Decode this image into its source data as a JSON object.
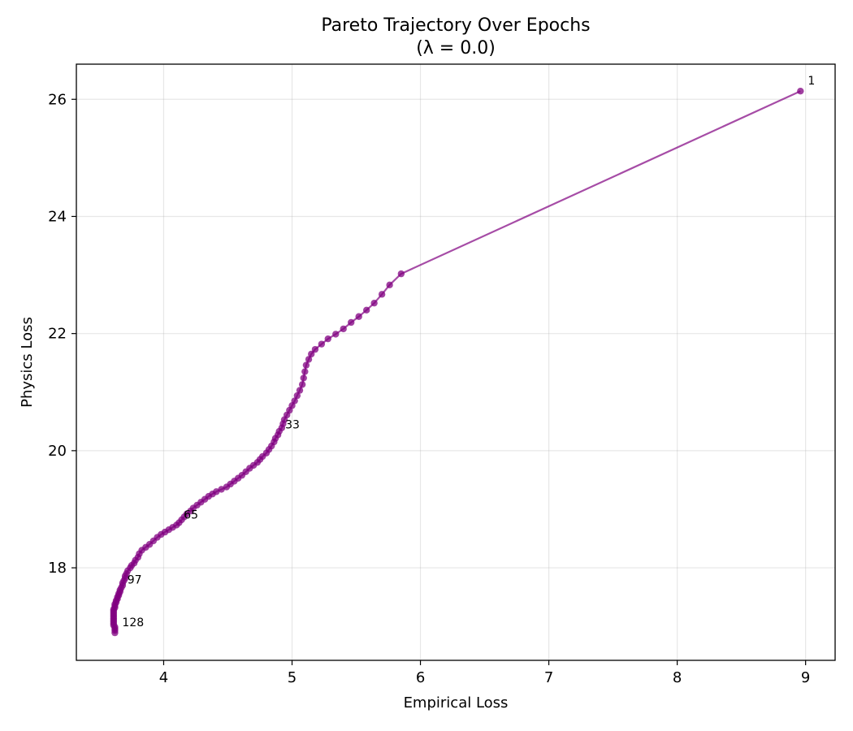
{
  "chart_data": {
    "type": "line",
    "title": "Pareto Trajectory Over Epochs",
    "subtitle": "(λ = 0.0)",
    "xlabel": "Empirical Loss",
    "ylabel": "Physics Loss",
    "xlim": [
      3.32,
      9.23
    ],
    "ylim": [
      16.42,
      26.6
    ],
    "xticks": [
      4,
      5,
      6,
      7,
      8,
      9
    ],
    "yticks": [
      18,
      20,
      22,
      24,
      26
    ],
    "grid": true,
    "color": "#800080",
    "points": [
      [
        8.96,
        26.14
      ],
      [
        5.85,
        23.02
      ],
      [
        5.76,
        22.83
      ],
      [
        5.7,
        22.67
      ],
      [
        5.64,
        22.52
      ],
      [
        5.58,
        22.4
      ],
      [
        5.52,
        22.29
      ],
      [
        5.46,
        22.19
      ],
      [
        5.4,
        22.08
      ],
      [
        5.34,
        21.99
      ],
      [
        5.28,
        21.91
      ],
      [
        5.23,
        21.82
      ],
      [
        5.18,
        21.73
      ],
      [
        5.15,
        21.65
      ],
      [
        5.13,
        21.56
      ],
      [
        5.11,
        21.46
      ],
      [
        5.1,
        21.35
      ],
      [
        5.09,
        21.24
      ],
      [
        5.08,
        21.13
      ],
      [
        5.06,
        21.03
      ],
      [
        5.04,
        20.94
      ],
      [
        5.02,
        20.85
      ],
      [
        5.0,
        20.77
      ],
      [
        4.98,
        20.69
      ],
      [
        4.96,
        20.61
      ],
      [
        4.94,
        20.53
      ],
      [
        4.93,
        20.46
      ],
      [
        4.92,
        20.39
      ],
      [
        4.9,
        20.33
      ],
      [
        4.89,
        20.27
      ],
      [
        4.87,
        20.21
      ],
      [
        4.86,
        20.15
      ],
      [
        4.84,
        20.08
      ],
      [
        4.82,
        20.02
      ],
      [
        4.8,
        19.96
      ],
      [
        4.77,
        19.9
      ],
      [
        4.75,
        19.85
      ],
      [
        4.73,
        19.8
      ],
      [
        4.7,
        19.75
      ],
      [
        4.67,
        19.7
      ],
      [
        4.64,
        19.64
      ],
      [
        4.61,
        19.58
      ],
      [
        4.58,
        19.53
      ],
      [
        4.55,
        19.48
      ],
      [
        4.52,
        19.43
      ],
      [
        4.49,
        19.38
      ],
      [
        4.45,
        19.34
      ],
      [
        4.41,
        19.3
      ],
      [
        4.38,
        19.26
      ],
      [
        4.35,
        19.22
      ],
      [
        4.32,
        19.17
      ],
      [
        4.29,
        19.12
      ],
      [
        4.26,
        19.07
      ],
      [
        4.23,
        19.02
      ],
      [
        4.21,
        18.97
      ],
      [
        4.18,
        18.92
      ],
      [
        4.16,
        18.87
      ],
      [
        4.14,
        18.82
      ],
      [
        4.12,
        18.77
      ],
      [
        4.1,
        18.73
      ],
      [
        4.07,
        18.69
      ],
      [
        4.04,
        18.65
      ],
      [
        4.01,
        18.61
      ],
      [
        3.98,
        18.57
      ],
      [
        3.95,
        18.52
      ],
      [
        3.92,
        18.46
      ],
      [
        3.89,
        18.4
      ],
      [
        3.86,
        18.35
      ],
      [
        3.83,
        18.3
      ],
      [
        3.81,
        18.24
      ],
      [
        3.8,
        18.18
      ],
      [
        3.78,
        18.13
      ],
      [
        3.77,
        18.08
      ],
      [
        3.75,
        18.04
      ],
      [
        3.74,
        18.0
      ],
      [
        3.72,
        17.95
      ],
      [
        3.71,
        17.9
      ],
      [
        3.7,
        17.86
      ],
      [
        3.7,
        17.82
      ],
      [
        3.69,
        17.78
      ],
      [
        3.68,
        17.74
      ],
      [
        3.68,
        17.7
      ],
      [
        3.67,
        17.66
      ],
      [
        3.66,
        17.62
      ],
      [
        3.66,
        17.59
      ],
      [
        3.65,
        17.56
      ],
      [
        3.65,
        17.53
      ],
      [
        3.64,
        17.5
      ],
      [
        3.64,
        17.47
      ],
      [
        3.63,
        17.44
      ],
      [
        3.63,
        17.41
      ],
      [
        3.62,
        17.38
      ],
      [
        3.62,
        17.35
      ],
      [
        3.62,
        17.32
      ],
      [
        3.61,
        17.29
      ],
      [
        3.61,
        17.26
      ],
      [
        3.61,
        17.23
      ],
      [
        3.61,
        17.2
      ],
      [
        3.61,
        17.17
      ],
      [
        3.61,
        17.14
      ],
      [
        3.61,
        17.11
      ],
      [
        3.61,
        17.08
      ],
      [
        3.61,
        17.05
      ],
      [
        3.61,
        17.02
      ],
      [
        3.62,
        16.99
      ],
      [
        3.62,
        16.96
      ],
      [
        3.62,
        16.93
      ],
      [
        3.62,
        16.89
      ]
    ],
    "annotations": [
      {
        "text": "1",
        "x": 8.96,
        "y": 26.14
      },
      {
        "text": "33",
        "x": 4.89,
        "y": 20.27
      },
      {
        "text": "65",
        "x": 4.1,
        "y": 18.73
      },
      {
        "text": "97",
        "x": 3.66,
        "y": 17.62
      },
      {
        "text": "128",
        "x": 3.62,
        "y": 16.89
      }
    ]
  }
}
